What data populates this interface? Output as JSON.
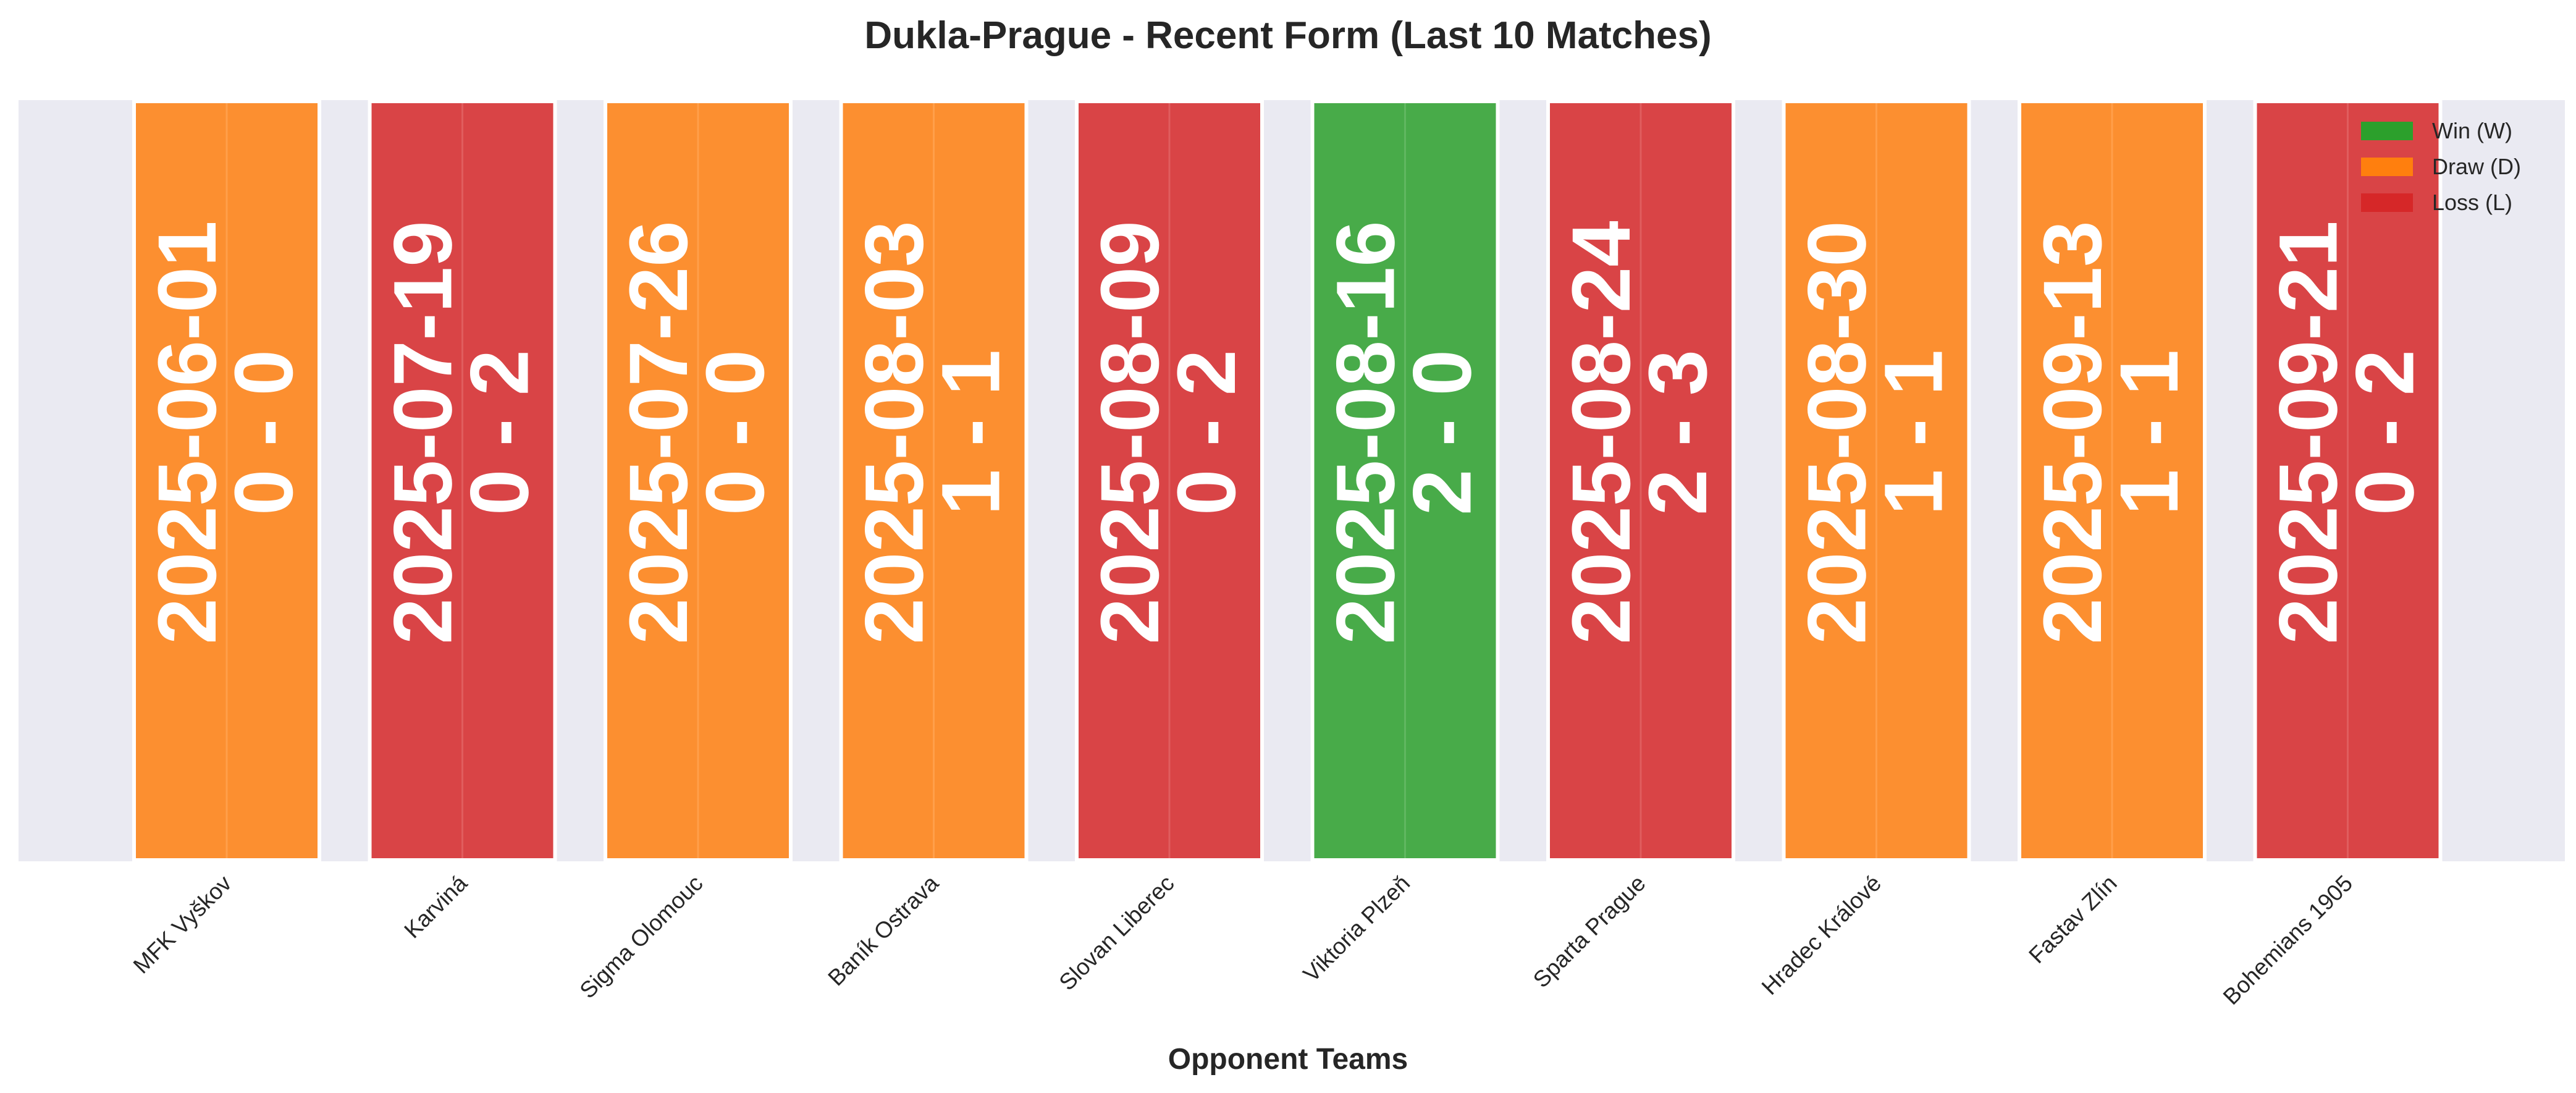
{
  "chart_data": {
    "type": "bar",
    "title": "Dukla-Prague - Recent Form (Last 10 Matches)",
    "xlabel": "Opponent Teams",
    "ylabel": "",
    "grid": true,
    "legend_position": "top-right",
    "categories": [
      "MFK Vyškov",
      "Karviná",
      "Sigma Olomouc",
      "Baník Ostrava",
      "Slovan Liberec",
      "Viktoria Plzeň",
      "Sparta Prague",
      "Hradec Králové",
      "Fastav Zlín",
      "Bohemians 1905"
    ],
    "matches": [
      {
        "opponent": "MFK Vyškov",
        "date": "2025-06-01",
        "score": "0 - 0",
        "result": "D"
      },
      {
        "opponent": "Karviná",
        "date": "2025-07-19",
        "score": "0 - 2",
        "result": "L"
      },
      {
        "opponent": "Sigma Olomouc",
        "date": "2025-07-26",
        "score": "0 - 0",
        "result": "D"
      },
      {
        "opponent": "Baník Ostrava",
        "date": "2025-08-03",
        "score": "1 - 1",
        "result": "D"
      },
      {
        "opponent": "Slovan Liberec",
        "date": "2025-08-09",
        "score": "0 - 2",
        "result": "L"
      },
      {
        "opponent": "Viktoria Plzeň",
        "date": "2025-08-16",
        "score": "2 - 0",
        "result": "W"
      },
      {
        "opponent": "Sparta Prague",
        "date": "2025-08-24",
        "score": "2 - 3",
        "result": "L"
      },
      {
        "opponent": "Hradec Králové",
        "date": "2025-08-30",
        "score": "1 - 1",
        "result": "D"
      },
      {
        "opponent": "Fastav Zlín",
        "date": "2025-09-13",
        "score": "1 - 1",
        "result": "D"
      },
      {
        "opponent": "Bohemians 1905",
        "date": "2025-09-21",
        "score": "0 - 2",
        "result": "L"
      }
    ],
    "legend": [
      {
        "key": "W",
        "label": "Win (W)",
        "color": "#2ca02c"
      },
      {
        "key": "D",
        "label": "Draw (D)",
        "color": "#ff7f0e"
      },
      {
        "key": "L",
        "label": "Loss (L)",
        "color": "#d62728"
      }
    ],
    "colors": {
      "W": "#2ca02c",
      "D": "#ff7f0e",
      "L": "#d62728",
      "plot_background": "#eaeaf2",
      "grid": "#ffffff"
    }
  }
}
